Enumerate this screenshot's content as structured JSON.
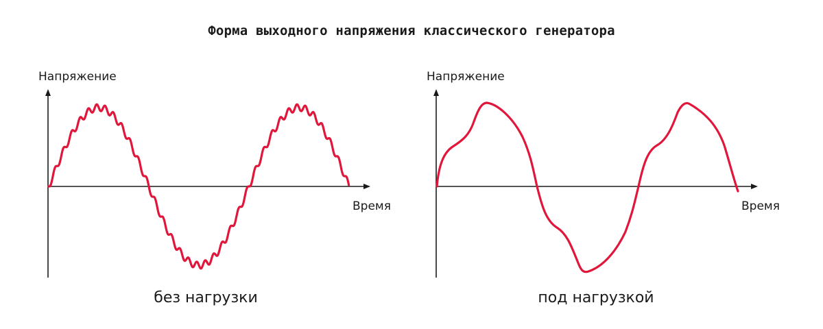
{
  "title": "Форма выходного напряжения классического генератора",
  "panels": [
    {
      "id": "no-load",
      "ylabel": "Напряжение",
      "xlabel": "Время",
      "caption": "без нагрузки",
      "waveform": "sine with high-frequency ripple",
      "color": "#e0163a"
    },
    {
      "id": "under-load",
      "ylabel": "Напряжение",
      "xlabel": "Время",
      "caption": "под нагрузкой",
      "waveform": "distorted sine",
      "color": "#e0163a"
    }
  ]
}
